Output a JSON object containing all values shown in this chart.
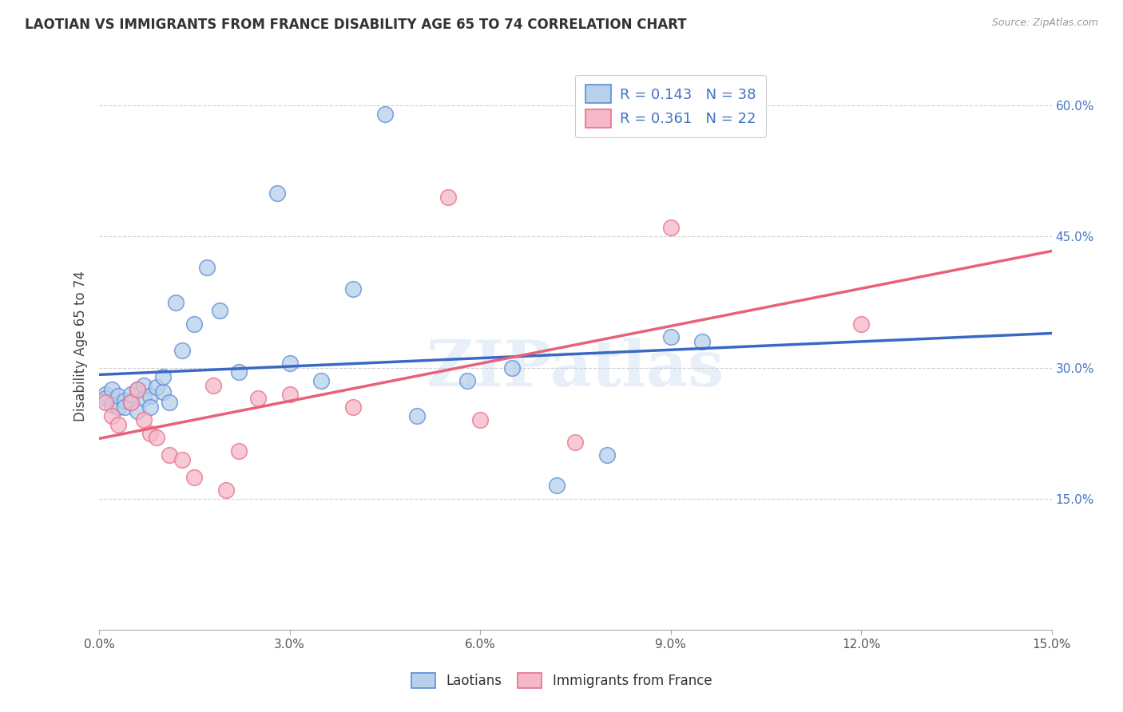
{
  "title": "LAOTIAN VS IMMIGRANTS FROM FRANCE DISABILITY AGE 65 TO 74 CORRELATION CHART",
  "source_text": "Source: ZipAtlas.com",
  "ylabel": "Disability Age 65 to 74",
  "xlim": [
    0.0,
    0.15
  ],
  "ylim": [
    0.0,
    0.65
  ],
  "xticks": [
    0.0,
    0.03,
    0.06,
    0.09,
    0.12,
    0.15
  ],
  "xticklabels": [
    "0.0%",
    "3.0%",
    "6.0%",
    "9.0%",
    "12.0%",
    "15.0%"
  ],
  "yticks": [
    0.15,
    0.3,
    0.45,
    0.6
  ],
  "yticklabels": [
    "15.0%",
    "30.0%",
    "45.0%",
    "60.0%"
  ],
  "laotian_R": 0.143,
  "laotian_N": 38,
  "france_R": 0.361,
  "france_N": 22,
  "blue_fill": "#b8d0ea",
  "pink_fill": "#f5b8c8",
  "blue_edge": "#5b8dd9",
  "pink_edge": "#e8708a",
  "blue_line": "#3a68c4",
  "pink_line": "#e8607a",
  "legend_color": "#4472c4",
  "watermark": "ZIPatlas",
  "laotian_x": [
    0.001,
    0.001,
    0.002,
    0.002,
    0.003,
    0.003,
    0.004,
    0.004,
    0.005,
    0.005,
    0.006,
    0.006,
    0.007,
    0.007,
    0.008,
    0.008,
    0.009,
    0.01,
    0.01,
    0.011,
    0.012,
    0.013,
    0.015,
    0.017,
    0.019,
    0.022,
    0.028,
    0.03,
    0.035,
    0.04,
    0.045,
    0.05,
    0.058,
    0.065,
    0.072,
    0.08,
    0.09,
    0.095
  ],
  "laotian_y": [
    0.27,
    0.265,
    0.258,
    0.275,
    0.255,
    0.268,
    0.262,
    0.255,
    0.26,
    0.27,
    0.25,
    0.275,
    0.265,
    0.28,
    0.268,
    0.255,
    0.278,
    0.272,
    0.29,
    0.26,
    0.375,
    0.32,
    0.35,
    0.415,
    0.365,
    0.295,
    0.5,
    0.305,
    0.285,
    0.39,
    0.59,
    0.245,
    0.285,
    0.3,
    0.165,
    0.2,
    0.335,
    0.33
  ],
  "france_x": [
    0.001,
    0.002,
    0.003,
    0.005,
    0.006,
    0.007,
    0.008,
    0.009,
    0.011,
    0.013,
    0.015,
    0.018,
    0.02,
    0.022,
    0.025,
    0.03,
    0.04,
    0.055,
    0.06,
    0.075,
    0.09,
    0.12
  ],
  "france_y": [
    0.26,
    0.245,
    0.235,
    0.26,
    0.275,
    0.24,
    0.225,
    0.22,
    0.2,
    0.195,
    0.175,
    0.28,
    0.16,
    0.205,
    0.265,
    0.27,
    0.255,
    0.495,
    0.24,
    0.215,
    0.46,
    0.35
  ]
}
